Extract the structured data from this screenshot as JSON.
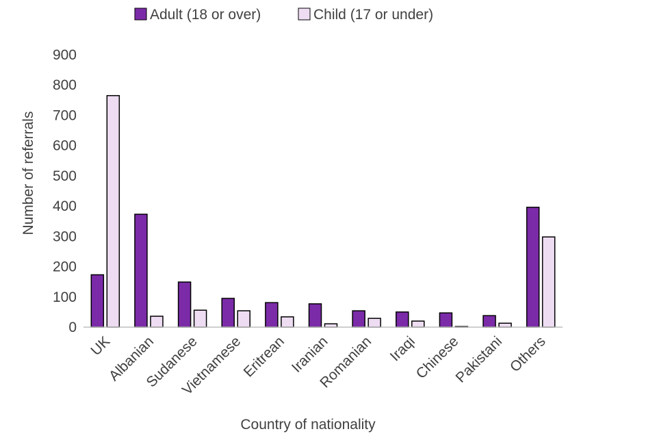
{
  "chart_data": {
    "type": "bar",
    "title": "",
    "xlabel": "Country of nationality",
    "ylabel": "Number of referrals",
    "ylim": [
      0,
      900
    ],
    "yticks": [
      0,
      100,
      200,
      300,
      400,
      500,
      600,
      700,
      800,
      900
    ],
    "grid": false,
    "legend_position": "top",
    "categories": [
      "UK",
      "Albanian",
      "Sudanese",
      "Vietnamese",
      "Eritrean",
      "Iranian",
      "Romanian",
      "Iraqi",
      "Chinese",
      "Pakistani",
      "Others"
    ],
    "series": [
      {
        "name": "Adult (18 or over)",
        "color": "#7B2BA8",
        "values": [
          173,
          373,
          149,
          95,
          81,
          77,
          54,
          50,
          47,
          38,
          396
        ]
      },
      {
        "name": "Child (17 or under)",
        "color": "#EEDDF2",
        "values": [
          765,
          36,
          56,
          54,
          34,
          11,
          29,
          20,
          2,
          13,
          298
        ]
      }
    ]
  }
}
